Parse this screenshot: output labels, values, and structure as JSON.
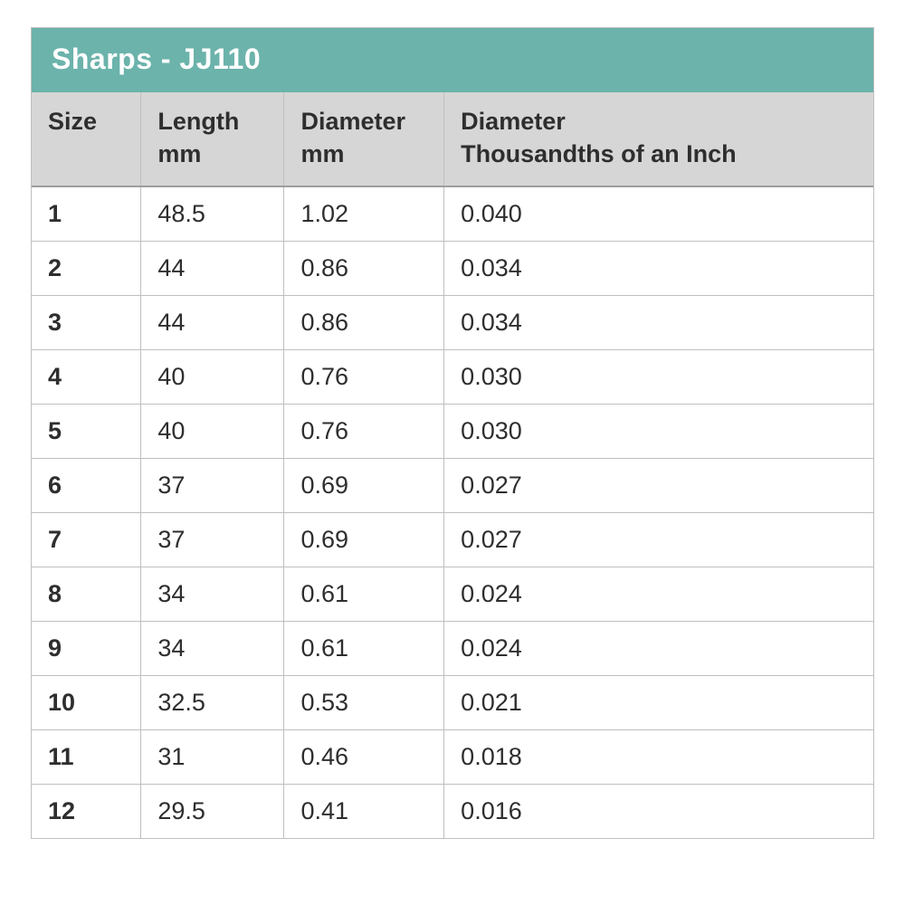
{
  "table": {
    "title": "Sharps - JJ110",
    "title_bg": "#6bb3ab",
    "title_color": "#ffffff",
    "header_bg": "#d6d6d6",
    "border_color": "#bfbfbf",
    "text_color": "#2e2e2e",
    "font_size_header": 27,
    "font_size_cell": 27,
    "columns": [
      {
        "label": "Size",
        "sub": "",
        "width_pct": 13
      },
      {
        "label": "Length",
        "sub": "mm",
        "width_pct": 17
      },
      {
        "label": "Diameter",
        "sub": "mm",
        "width_pct": 19
      },
      {
        "label": "Diameter",
        "sub": "Thousandths of an Inch",
        "width_pct": 51
      }
    ],
    "rows": [
      [
        "1",
        "48.5",
        "1.02",
        "0.040"
      ],
      [
        "2",
        "44",
        "0.86",
        "0.034"
      ],
      [
        "3",
        "44",
        "0.86",
        "0.034"
      ],
      [
        "4",
        "40",
        "0.76",
        "0.030"
      ],
      [
        "5",
        "40",
        "0.76",
        "0.030"
      ],
      [
        "6",
        "37",
        "0.69",
        "0.027"
      ],
      [
        "7",
        "37",
        "0.69",
        "0.027"
      ],
      [
        "8",
        "34",
        "0.61",
        "0.024"
      ],
      [
        "9",
        "34",
        "0.61",
        "0.024"
      ],
      [
        "10",
        "32.5",
        "0.53",
        "0.021"
      ],
      [
        "11",
        "31",
        "0.46",
        "0.018"
      ],
      [
        "12",
        "29.5",
        "0.41",
        "0.016"
      ]
    ]
  }
}
